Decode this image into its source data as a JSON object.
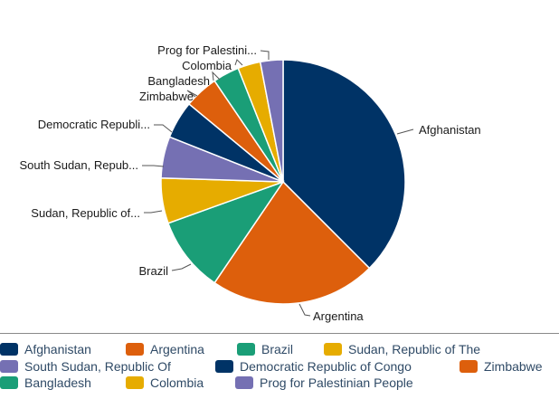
{
  "chart_data": {
    "type": "pie",
    "slices": [
      {
        "name": "Afghanistan",
        "label": "Afghanistan",
        "value": 37.5,
        "color": "#003366"
      },
      {
        "name": "Argentina",
        "label": "Argentina",
        "value": 22.0,
        "color": "#dd5f0c"
      },
      {
        "name": "Brazil",
        "label": "Brazil",
        "value": 10.0,
        "color": "#1a9e77"
      },
      {
        "name": "Sudan, Republic of The",
        "label": "Sudan, Republic of...",
        "value": 6.0,
        "color": "#e6ac00"
      },
      {
        "name": "South Sudan, Republic Of",
        "label": "South Sudan, Repub...",
        "value": 5.5,
        "color": "#7570b3"
      },
      {
        "name": "Democratic Republic of Congo",
        "label": "Democratic Republi...",
        "value": 5.0,
        "color": "#003366"
      },
      {
        "name": "Zimbabwe",
        "label": "Zimbabwe",
        "value": 4.5,
        "color": "#dd5f0c"
      },
      {
        "name": "Bangladesh",
        "label": "Bangladesh",
        "value": 3.5,
        "color": "#1a9e77"
      },
      {
        "name": "Colombia",
        "label": "Colombia",
        "value": 3.0,
        "color": "#e6ac00"
      },
      {
        "name": "Prog for Palestinian People",
        "label": "Prog for Palestini...",
        "value": 3.0,
        "color": "#7570b3"
      }
    ],
    "legend_position": "bottom"
  },
  "legend": {
    "rows": [
      [
        "Afghanistan",
        "Argentina",
        "Brazil",
        "Sudan, Republic of The"
      ],
      [
        "South Sudan, Republic Of",
        "Democratic Republic of Congo",
        "Zimbabwe"
      ],
      [
        "Bangladesh",
        "Colombia",
        "Prog for Palestinian People"
      ]
    ]
  }
}
